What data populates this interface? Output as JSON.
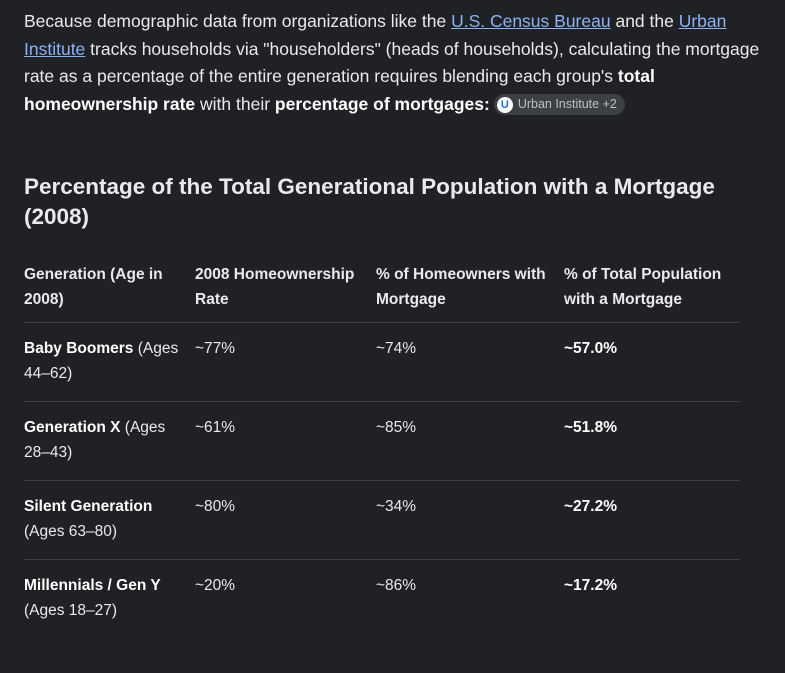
{
  "intro": {
    "part1": "Because demographic data from organizations like the ",
    "link1": "U.S. Census Bureau",
    "part2": " and the ",
    "link2": "Urban Institute",
    "part3": " tracks households via \"householders\" (heads of households), calculating the mortgage rate as a percentage of the entire generation requires blending each group's ",
    "bold1": "total homeownership rate",
    "part4": " with their ",
    "bold2": "percentage of mortgages",
    "part5": ":",
    "chip": {
      "logo_letter": "U",
      "label": "Urban Institute +2"
    }
  },
  "heading": "Percentage of the Total Generational Population with a Mortgage (2008)",
  "table": {
    "headers": [
      "Generation (Age in 2008)",
      "2008 Homeownership Rate",
      "% of Homeowners with Mortgage",
      "% of Total Population with a Mortgage"
    ],
    "rows": [
      {
        "generation": "Baby Boomers",
        "ages": "(Ages 44–62)",
        "homeownership": "~77%",
        "mortgage": "~74%",
        "total": "~57.0%"
      },
      {
        "generation": "Generation X",
        "ages": "(Ages 28–43)",
        "homeownership": "~61%",
        "mortgage": "~85%",
        "total": "~51.8%"
      },
      {
        "generation": "Silent Generation",
        "ages": "(Ages 63–80)",
        "homeownership": "~80%",
        "mortgage": "~34%",
        "total": "~27.2%"
      },
      {
        "generation": "Millennials / Gen Y",
        "ages": "(Ages 18–27)",
        "homeownership": "~20%",
        "mortgage": "~86%",
        "total": "~17.2%"
      }
    ]
  },
  "colors": {
    "background": "#202124",
    "text": "#e8eaed",
    "link": "#8ab4f8",
    "chip_bg": "#3c4043",
    "divider": "#3c4043"
  }
}
